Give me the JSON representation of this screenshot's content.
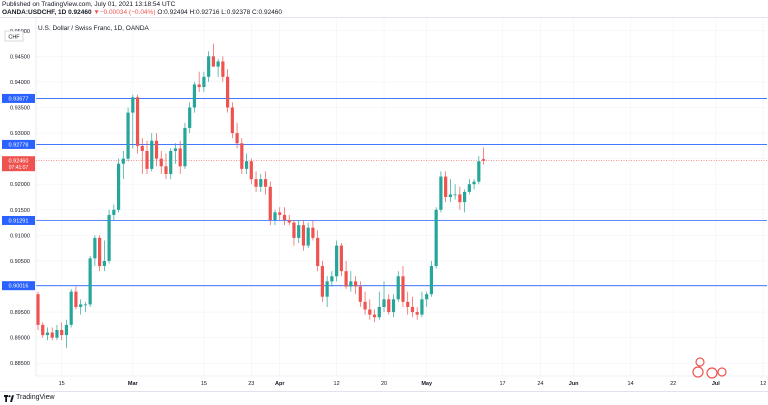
{
  "header": {
    "published": "Published on TradingView.com, July 01, 2021 13:18:54 UTC",
    "symbol": "OANDA:USDCHF, 1D 0.92460",
    "change": "▼−0.00034 (−0.04%)",
    "ohlc_o": "O:0.92494",
    "ohlc_h": "H:0.92716",
    "ohlc_l": "L:0.92378",
    "ohlc_c": "C:0.92460"
  },
  "chart_title": "U.S. Dollar / Swiss Franc, 1D, OANDA",
  "currency_label": "CHF",
  "brand": "TradingView",
  "watermark_name": "fx-logo",
  "colors": {
    "up": "#26a69a",
    "down": "#ef5350",
    "hline": "#2962ff",
    "last": "#ef5350"
  },
  "chart_data": {
    "type": "candlestick",
    "title": "U.S. Dollar / Swiss Franc, 1D, OANDA",
    "ylim": [
      0.8825,
      0.9525
    ],
    "y_ticks": [
      "0.95000",
      "0.94500",
      "0.94000",
      "0.93500",
      "0.93000",
      "0.92500",
      "0.92000",
      "0.91500",
      "0.91000",
      "0.90500",
      "0.90000",
      "0.89500",
      "0.89000",
      "0.88500"
    ],
    "x_ticks": [
      {
        "i": 5,
        "label": "15"
      },
      {
        "i": 20,
        "label": "Mar"
      },
      {
        "i": 35,
        "label": "15"
      },
      {
        "i": 45,
        "label": "23"
      },
      {
        "i": 51,
        "label": "Apr"
      },
      {
        "i": 63,
        "label": "12"
      },
      {
        "i": 73,
        "label": "20"
      },
      {
        "i": 82,
        "label": "May"
      },
      {
        "i": 98,
        "label": "17"
      },
      {
        "i": 106,
        "label": "24"
      },
      {
        "i": 113,
        "label": "Jun"
      },
      {
        "i": 125,
        "label": "14"
      },
      {
        "i": 134,
        "label": "22"
      },
      {
        "i": 143,
        "label": "Jul"
      },
      {
        "i": 153,
        "label": "12"
      }
    ],
    "hlines": [
      {
        "value": 0.93677,
        "label": "0.93677"
      },
      {
        "value": 0.92778,
        "label": "0.92778"
      },
      {
        "value": 0.91291,
        "label": "0.91291"
      },
      {
        "value": 0.90016,
        "label": "0.90016"
      }
    ],
    "last_price": {
      "value": 0.9246,
      "label": "0.92460",
      "countdown": "07:41:07"
    },
    "candles": [
      [
        0.8985,
        0.899,
        0.8915,
        0.8925
      ],
      [
        0.8925,
        0.893,
        0.89,
        0.8905
      ],
      [
        0.8905,
        0.892,
        0.8895,
        0.891
      ],
      [
        0.891,
        0.892,
        0.8895,
        0.89
      ],
      [
        0.89,
        0.8925,
        0.8895,
        0.8915
      ],
      [
        0.8915,
        0.893,
        0.8895,
        0.8905
      ],
      [
        0.8905,
        0.8935,
        0.888,
        0.8925
      ],
      [
        0.8925,
        0.8995,
        0.892,
        0.899
      ],
      [
        0.899,
        0.9,
        0.8955,
        0.896
      ],
      [
        0.896,
        0.8975,
        0.8945,
        0.8965
      ],
      [
        0.8965,
        0.897,
        0.895,
        0.8965
      ],
      [
        0.8965,
        0.906,
        0.896,
        0.9055
      ],
      [
        0.9055,
        0.91,
        0.904,
        0.9095
      ],
      [
        0.9095,
        0.91,
        0.903,
        0.904
      ],
      [
        0.904,
        0.909,
        0.903,
        0.905
      ],
      [
        0.905,
        0.915,
        0.9045,
        0.914
      ],
      [
        0.914,
        0.916,
        0.913,
        0.915
      ],
      [
        0.915,
        0.925,
        0.9145,
        0.924
      ],
      [
        0.924,
        0.9265,
        0.921,
        0.925
      ],
      [
        0.925,
        0.935,
        0.9245,
        0.934
      ],
      [
        0.934,
        0.9375,
        0.927,
        0.937
      ],
      [
        0.937,
        0.9375,
        0.926,
        0.9275
      ],
      [
        0.9275,
        0.929,
        0.922,
        0.9265
      ],
      [
        0.9265,
        0.9285,
        0.922,
        0.923
      ],
      [
        0.923,
        0.93,
        0.9225,
        0.9285
      ],
      [
        0.9285,
        0.93,
        0.9235,
        0.925
      ],
      [
        0.925,
        0.9265,
        0.922,
        0.9235
      ],
      [
        0.9235,
        0.926,
        0.921,
        0.922
      ],
      [
        0.922,
        0.927,
        0.921,
        0.9265
      ],
      [
        0.9265,
        0.928,
        0.924,
        0.927
      ],
      [
        0.927,
        0.9285,
        0.922,
        0.9235
      ],
      [
        0.9235,
        0.932,
        0.923,
        0.931
      ],
      [
        0.931,
        0.936,
        0.93,
        0.935
      ],
      [
        0.935,
        0.94,
        0.934,
        0.9395
      ],
      [
        0.9395,
        0.942,
        0.938,
        0.939
      ],
      [
        0.939,
        0.942,
        0.938,
        0.941
      ],
      [
        0.941,
        0.946,
        0.94,
        0.945
      ],
      [
        0.945,
        0.9475,
        0.943,
        0.943
      ],
      [
        0.943,
        0.9445,
        0.941,
        0.944
      ],
      [
        0.944,
        0.945,
        0.94,
        0.941
      ],
      [
        0.941,
        0.9425,
        0.934,
        0.935
      ],
      [
        0.935,
        0.936,
        0.929,
        0.93
      ],
      [
        0.93,
        0.932,
        0.927,
        0.928
      ],
      [
        0.928,
        0.929,
        0.922,
        0.923
      ],
      [
        0.923,
        0.926,
        0.922,
        0.9245
      ],
      [
        0.9245,
        0.925,
        0.92,
        0.921
      ],
      [
        0.921,
        0.9225,
        0.9185,
        0.9195
      ],
      [
        0.9195,
        0.922,
        0.9185,
        0.921
      ],
      [
        0.921,
        0.9225,
        0.918,
        0.9195
      ],
      [
        0.9195,
        0.9205,
        0.912,
        0.913
      ],
      [
        0.913,
        0.915,
        0.912,
        0.9145
      ],
      [
        0.9145,
        0.9155,
        0.913,
        0.914
      ],
      [
        0.914,
        0.9155,
        0.912,
        0.913
      ],
      [
        0.913,
        0.914,
        0.912,
        0.9125
      ],
      [
        0.9125,
        0.913,
        0.908,
        0.9095
      ],
      [
        0.9095,
        0.913,
        0.9085,
        0.912
      ],
      [
        0.912,
        0.913,
        0.907,
        0.908
      ],
      [
        0.908,
        0.9125,
        0.9075,
        0.9115
      ],
      [
        0.9115,
        0.913,
        0.909,
        0.9095
      ],
      [
        0.9095,
        0.911,
        0.903,
        0.904
      ],
      [
        0.904,
        0.905,
        0.897,
        0.898
      ],
      [
        0.898,
        0.902,
        0.896,
        0.901
      ],
      [
        0.901,
        0.903,
        0.9,
        0.902
      ],
      [
        0.902,
        0.909,
        0.901,
        0.908
      ],
      [
        0.908,
        0.9085,
        0.902,
        0.903
      ],
      [
        0.903,
        0.905,
        0.8995,
        0.9
      ],
      [
        0.9,
        0.903,
        0.899,
        0.901
      ],
      [
        0.901,
        0.902,
        0.8985,
        0.9
      ],
      [
        0.9,
        0.901,
        0.896,
        0.897
      ],
      [
        0.897,
        0.899,
        0.8945,
        0.8955
      ],
      [
        0.8955,
        0.8975,
        0.8935,
        0.8945
      ],
      [
        0.8945,
        0.8955,
        0.893,
        0.894
      ],
      [
        0.894,
        0.899,
        0.8935,
        0.896
      ],
      [
        0.896,
        0.901,
        0.895,
        0.8975
      ],
      [
        0.8975,
        0.8985,
        0.8945,
        0.895
      ],
      [
        0.895,
        0.8985,
        0.894,
        0.8975
      ],
      [
        0.8975,
        0.903,
        0.897,
        0.902
      ],
      [
        0.902,
        0.904,
        0.896,
        0.897
      ],
      [
        0.897,
        0.899,
        0.8945,
        0.896
      ],
      [
        0.896,
        0.898,
        0.894,
        0.895
      ],
      [
        0.895,
        0.896,
        0.8935,
        0.8945
      ],
      [
        0.8945,
        0.899,
        0.894,
        0.8975
      ],
      [
        0.8975,
        0.899,
        0.896,
        0.8985
      ],
      [
        0.8985,
        0.905,
        0.898,
        0.904
      ],
      [
        0.904,
        0.9155,
        0.9035,
        0.915
      ],
      [
        0.915,
        0.9225,
        0.9145,
        0.9215
      ],
      [
        0.9215,
        0.9225,
        0.9165,
        0.9175
      ],
      [
        0.9175,
        0.921,
        0.9165,
        0.918
      ],
      [
        0.918,
        0.92,
        0.917,
        0.918
      ],
      [
        0.918,
        0.9195,
        0.915,
        0.9165
      ],
      [
        0.9165,
        0.919,
        0.9145,
        0.9185
      ],
      [
        0.9185,
        0.921,
        0.918,
        0.92
      ],
      [
        0.92,
        0.921,
        0.919,
        0.9205
      ],
      [
        0.9205,
        0.9255,
        0.92,
        0.9245
      ],
      [
        0.9249,
        0.9272,
        0.9238,
        0.9246
      ]
    ]
  }
}
